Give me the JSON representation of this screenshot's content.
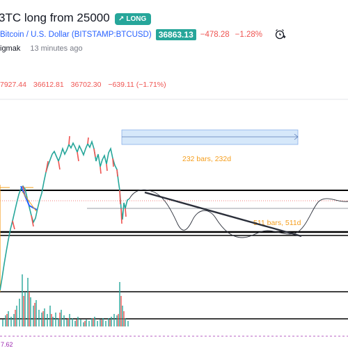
{
  "idea": {
    "title_prefix": "3TC long from 25000",
    "badge_label": "LONG"
  },
  "symbol": {
    "name": "Bitcoin / U.S. Dollar (BITSTAMP:BTCUSD)",
    "price": "36863.13",
    "change": "−478.28",
    "change_pct": "−1.28%"
  },
  "author": {
    "name": "igmak",
    "time_ago": "13 minutes ago"
  },
  "ohlc": {
    "open": "7927.44",
    "low": "36612.81",
    "close": "36702.30",
    "change": "−639.11 (−1.71%)"
  },
  "chart_labels": {
    "range_label_1": "232 bars, 232d",
    "range_label_2": "511 bars, 511d",
    "bottom_value": "7.62"
  },
  "colors": {
    "accent_green": "#26a69a",
    "red": "#ef5350",
    "blue": "#2962ff",
    "orange": "#f59d1a"
  },
  "icons": {
    "alert": "alarm-clock-plus-icon",
    "badge": "arrow-up-right-icon"
  }
}
